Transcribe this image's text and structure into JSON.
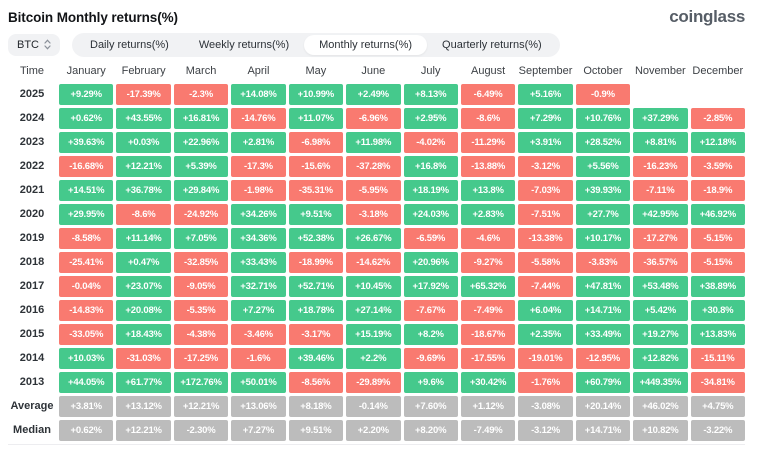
{
  "header": {
    "title": "Bitcoin Monthly returns(%)",
    "logo_text": "coinglass"
  },
  "toolbar": {
    "symbol": "BTC",
    "tabs": [
      {
        "label": "Daily returns(%)",
        "active": false
      },
      {
        "label": "Weekly returns(%)",
        "active": false
      },
      {
        "label": "Monthly returns(%)",
        "active": true
      },
      {
        "label": "Quarterly returns(%)",
        "active": false
      }
    ]
  },
  "chart_data": {
    "type": "heatmap",
    "title": "Bitcoin Monthly returns(%)",
    "row_header": "Time",
    "columns": [
      "January",
      "February",
      "March",
      "April",
      "May",
      "June",
      "July",
      "August",
      "September",
      "October",
      "November",
      "December"
    ],
    "rows": [
      {
        "label": "2025",
        "kind": "year",
        "values": [
          "+9.29%",
          "-17.39%",
          "-2.3%",
          "+14.08%",
          "+10.99%",
          "+2.49%",
          "+8.13%",
          "-6.49%",
          "+5.16%",
          "-0.9%",
          null,
          null
        ]
      },
      {
        "label": "2024",
        "kind": "year",
        "values": [
          "+0.62%",
          "+43.55%",
          "+16.81%",
          "-14.76%",
          "+11.07%",
          "-6.96%",
          "+2.95%",
          "-8.6%",
          "+7.29%",
          "+10.76%",
          "+37.29%",
          "-2.85%"
        ]
      },
      {
        "label": "2023",
        "kind": "year",
        "values": [
          "+39.63%",
          "+0.03%",
          "+22.96%",
          "+2.81%",
          "-6.98%",
          "+11.98%",
          "-4.02%",
          "-11.29%",
          "+3.91%",
          "+28.52%",
          "+8.81%",
          "+12.18%"
        ]
      },
      {
        "label": "2022",
        "kind": "year",
        "values": [
          "-16.68%",
          "+12.21%",
          "+5.39%",
          "-17.3%",
          "-15.6%",
          "-37.28%",
          "+16.8%",
          "-13.88%",
          "-3.12%",
          "+5.56%",
          "-16.23%",
          "-3.59%"
        ]
      },
      {
        "label": "2021",
        "kind": "year",
        "values": [
          "+14.51%",
          "+36.78%",
          "+29.84%",
          "-1.98%",
          "-35.31%",
          "-5.95%",
          "+18.19%",
          "+13.8%",
          "-7.03%",
          "+39.93%",
          "-7.11%",
          "-18.9%"
        ]
      },
      {
        "label": "2020",
        "kind": "year",
        "values": [
          "+29.95%",
          "-8.6%",
          "-24.92%",
          "+34.26%",
          "+9.51%",
          "-3.18%",
          "+24.03%",
          "+2.83%",
          "-7.51%",
          "+27.7%",
          "+42.95%",
          "+46.92%"
        ]
      },
      {
        "label": "2019",
        "kind": "year",
        "values": [
          "-8.58%",
          "+11.14%",
          "+7.05%",
          "+34.36%",
          "+52.38%",
          "+26.67%",
          "-6.59%",
          "-4.6%",
          "-13.38%",
          "+10.17%",
          "-17.27%",
          "-5.15%"
        ]
      },
      {
        "label": "2018",
        "kind": "year",
        "values": [
          "-25.41%",
          "+0.47%",
          "-32.85%",
          "+33.43%",
          "-18.99%",
          "-14.62%",
          "+20.96%",
          "-9.27%",
          "-5.58%",
          "-3.83%",
          "-36.57%",
          "-5.15%"
        ]
      },
      {
        "label": "2017",
        "kind": "year",
        "values": [
          "-0.04%",
          "+23.07%",
          "-9.05%",
          "+32.71%",
          "+52.71%",
          "+10.45%",
          "+17.92%",
          "+65.32%",
          "-7.44%",
          "+47.81%",
          "+53.48%",
          "+38.89%"
        ]
      },
      {
        "label": "2016",
        "kind": "year",
        "values": [
          "-14.83%",
          "+20.08%",
          "-5.35%",
          "+7.27%",
          "+18.78%",
          "+27.14%",
          "-7.67%",
          "-7.49%",
          "+6.04%",
          "+14.71%",
          "+5.42%",
          "+30.8%"
        ]
      },
      {
        "label": "2015",
        "kind": "year",
        "values": [
          "-33.05%",
          "+18.43%",
          "-4.38%",
          "-3.46%",
          "-3.17%",
          "+15.19%",
          "+8.2%",
          "-18.67%",
          "+2.35%",
          "+33.49%",
          "+19.27%",
          "+13.83%"
        ]
      },
      {
        "label": "2014",
        "kind": "year",
        "values": [
          "+10.03%",
          "-31.03%",
          "-17.25%",
          "-1.6%",
          "+39.46%",
          "+2.2%",
          "-9.69%",
          "-17.55%",
          "-19.01%",
          "-12.95%",
          "+12.82%",
          "-15.11%"
        ]
      },
      {
        "label": "2013",
        "kind": "year",
        "values": [
          "+44.05%",
          "+61.77%",
          "+172.76%",
          "+50.01%",
          "-8.56%",
          "-29.89%",
          "+9.6%",
          "+30.42%",
          "-1.76%",
          "+60.79%",
          "+449.35%",
          "-34.81%"
        ]
      },
      {
        "label": "Average",
        "kind": "summary",
        "values": [
          "+3.81%",
          "+13.12%",
          "+12.21%",
          "+13.06%",
          "+8.18%",
          "-0.14%",
          "+7.60%",
          "+1.12%",
          "-3.08%",
          "+20.14%",
          "+46.02%",
          "+4.75%"
        ]
      },
      {
        "label": "Median",
        "kind": "summary",
        "values": [
          "+0.62%",
          "+12.21%",
          "-2.30%",
          "+7.27%",
          "+9.51%",
          "+2.20%",
          "+8.20%",
          "-7.49%",
          "-3.12%",
          "+14.71%",
          "+10.82%",
          "-3.22%"
        ]
      }
    ],
    "colors": {
      "positive": "#45c98c",
      "negative": "#f97a70",
      "summary": "#bcbcbc"
    }
  }
}
